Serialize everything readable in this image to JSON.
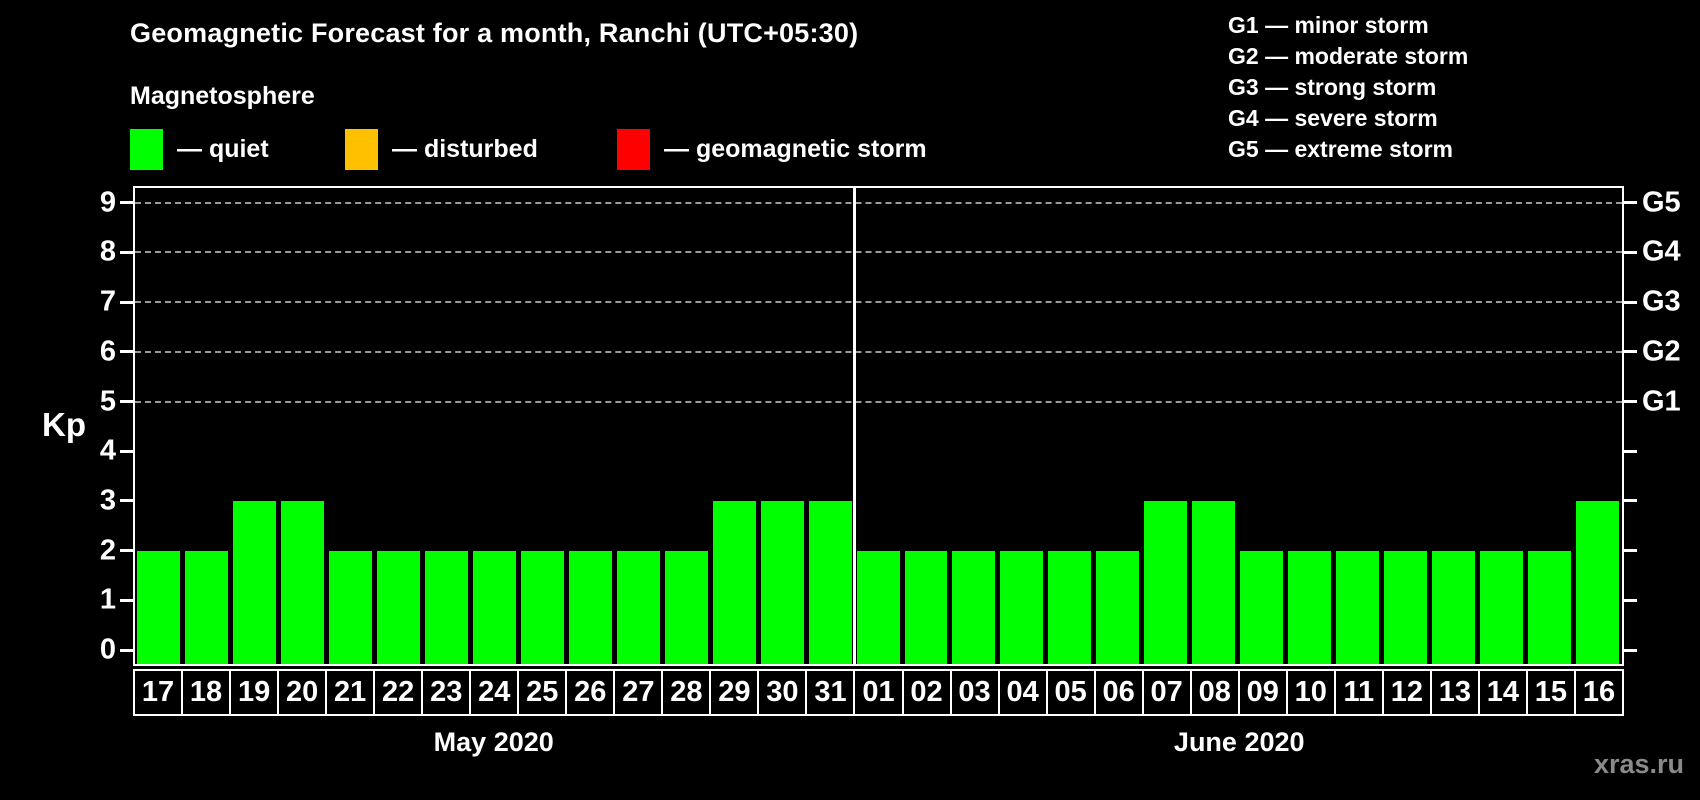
{
  "header": {
    "title": "Geomagnetic Forecast for a month, Ranchi (UTC+05:30)"
  },
  "magnetosphere_legend": {
    "title": "Magnetosphere",
    "dash": "—",
    "items": [
      {
        "key": "quiet",
        "label": "quiet",
        "color": "#00ff00"
      },
      {
        "key": "disturbed",
        "label": "disturbed",
        "color": "#ffc000"
      },
      {
        "key": "storm",
        "label": "geomagnetic storm",
        "color": "#ff0000"
      }
    ]
  },
  "g_scale_legend": {
    "dash": "—",
    "items": [
      {
        "code": "G1",
        "name": "minor storm"
      },
      {
        "code": "G2",
        "name": "moderate storm"
      },
      {
        "code": "G3",
        "name": "strong storm"
      },
      {
        "code": "G4",
        "name": "severe storm"
      },
      {
        "code": "G5",
        "name": "extreme storm"
      }
    ]
  },
  "watermark": "xras.ru",
  "chart_data": {
    "type": "bar",
    "title": "Geomagnetic Forecast for a month, Ranchi (UTC+05:30)",
    "ylabel": "Kp",
    "xlabel": "",
    "ylim": [
      0,
      9
    ],
    "yticks": [
      0,
      1,
      2,
      3,
      4,
      5,
      6,
      7,
      8,
      9
    ],
    "gridlines_at": [
      5,
      6,
      7,
      8,
      9
    ],
    "grid": "dashed horizontal lines at G storm levels only",
    "legend_position": "top",
    "right_axis_labels": [
      {
        "kp": 5,
        "label": "G1"
      },
      {
        "kp": 6,
        "label": "G2"
      },
      {
        "kp": 7,
        "label": "G3"
      },
      {
        "kp": 8,
        "label": "G4"
      },
      {
        "kp": 9,
        "label": "G5"
      }
    ],
    "colors": {
      "quiet": "#00ff00",
      "disturbed": "#ffc000",
      "storm": "#ff0000"
    },
    "months": [
      {
        "label": "May 2020",
        "days": [
          "17",
          "18",
          "19",
          "20",
          "21",
          "22",
          "23",
          "24",
          "25",
          "26",
          "27",
          "28",
          "29",
          "30",
          "31"
        ],
        "values": [
          2,
          2,
          3,
          3,
          2,
          2,
          2,
          2,
          2,
          2,
          2,
          2,
          3,
          3,
          3
        ],
        "status": [
          "quiet",
          "quiet",
          "quiet",
          "quiet",
          "quiet",
          "quiet",
          "quiet",
          "quiet",
          "quiet",
          "quiet",
          "quiet",
          "quiet",
          "quiet",
          "quiet",
          "quiet"
        ]
      },
      {
        "label": "June 2020",
        "days": [
          "01",
          "02",
          "03",
          "04",
          "05",
          "06",
          "07",
          "08",
          "09",
          "10",
          "11",
          "12",
          "13",
          "14",
          "15",
          "16"
        ],
        "values": [
          2,
          2,
          2,
          2,
          2,
          2,
          3,
          3,
          2,
          2,
          2,
          2,
          2,
          2,
          2,
          3
        ],
        "status": [
          "quiet",
          "quiet",
          "quiet",
          "quiet",
          "quiet",
          "quiet",
          "quiet",
          "quiet",
          "quiet",
          "quiet",
          "quiet",
          "quiet",
          "quiet",
          "quiet",
          "quiet",
          "quiet"
        ]
      }
    ]
  }
}
